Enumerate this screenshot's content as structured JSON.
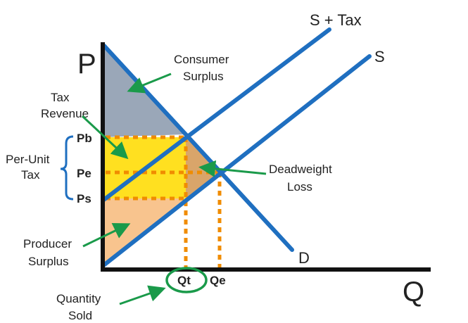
{
  "axes": {
    "y_label": "P",
    "x_label": "Q"
  },
  "curves": {
    "supply_tax": "S + Tax",
    "supply": "S",
    "demand": "D"
  },
  "prices": {
    "pb": "Pb",
    "pe": "Pe",
    "ps": "Ps"
  },
  "quantities": {
    "qt": "Qt",
    "qe": "Qe"
  },
  "annotations": {
    "consumer_surplus": [
      "Consumer",
      "Surplus"
    ],
    "tax_revenue": [
      "Tax",
      "Revenue"
    ],
    "per_unit_tax": [
      "Per-Unit",
      "Tax"
    ],
    "deadweight_loss": [
      "Deadweight",
      "Loss"
    ],
    "producer_surplus": [
      "Producer",
      "Surplus"
    ],
    "quantity_sold": [
      "Quantity",
      "Sold"
    ]
  },
  "colors": {
    "curve": "#1f6fc0",
    "axis": "#111111",
    "guide": "#f08c00",
    "arrow": "#1a9a4a",
    "consumer_surplus": "#9aa7b8",
    "tax_revenue": "#ffe020",
    "deadweight_loss": "#d9a56a",
    "producer_surplus": "#f8c48e"
  }
}
